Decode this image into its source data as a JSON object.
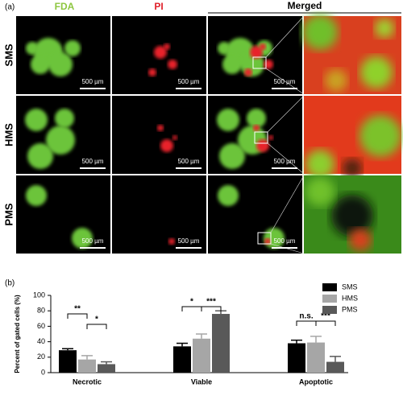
{
  "figure": {
    "panel_a": "(a)",
    "panel_b": "(b)",
    "columns": [
      "FDA",
      "PI",
      "Merged"
    ],
    "rows": [
      "SMS",
      "HMS",
      "PMS"
    ],
    "scale_bar": "500 µm"
  },
  "chart_data": {
    "type": "bar",
    "ylabel": "Percent of gated cells (%)",
    "categories": [
      "Necrotic",
      "Viable",
      "Apoptotic"
    ],
    "series": [
      {
        "name": "SMS",
        "color": "#000000",
        "values": [
          29,
          34,
          38
        ],
        "errors": [
          2,
          4,
          4
        ]
      },
      {
        "name": "HMS",
        "color": "#a6a6a6",
        "values": [
          17,
          44,
          39
        ],
        "errors": [
          5,
          6,
          8
        ]
      },
      {
        "name": "PMS",
        "color": "#595959",
        "values": [
          11,
          76,
          14
        ],
        "errors": [
          3,
          4,
          7
        ]
      }
    ],
    "ylim": [
      0,
      100
    ],
    "yticks": [
      0,
      20,
      40,
      60,
      80,
      100
    ],
    "annotations": [
      "**",
      "*",
      "*",
      "***",
      "n.s.",
      "***"
    ]
  }
}
